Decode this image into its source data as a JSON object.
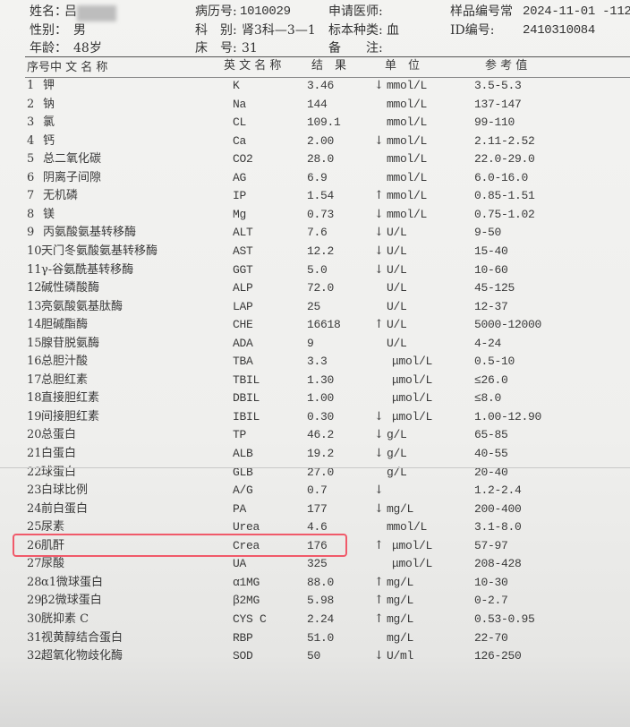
{
  "patient": {
    "name_label": "姓名：",
    "name": "吕",
    "sex_label": "性别：",
    "sex": "男",
    "age_label": "年龄：",
    "age": "48岁",
    "record_label": "病历号:",
    "record_no": "1010029",
    "dept_label": "科　别:",
    "dept": "肾3科—3—1",
    "bed_label": "床　号:",
    "bed": "31",
    "doctor_label": "申请医师:",
    "doctor": "",
    "specimen_label": "标本种类:",
    "specimen": "血",
    "note_label": "备　　注:",
    "note": "",
    "sample_label": "样品编号常",
    "sample_no": "2024-11-01 -112",
    "id_label": "ID编号:",
    "id_no": "2410310084"
  },
  "columns": {
    "seq_name": "序号中 文 名 称",
    "english": "英 文 名 称",
    "result": "结　果",
    "unit": "单　位",
    "reference": "参 考 值"
  },
  "rows": [
    {
      "no": "1",
      "cn": "钾",
      "en": "K",
      "result": "3.46",
      "flag": "↓",
      "unit": "mmol/L",
      "ref": "3.5-5.3"
    },
    {
      "no": "2",
      "cn": "钠",
      "en": "Na",
      "result": "144",
      "flag": "",
      "unit": "mmol/L",
      "ref": "137-147"
    },
    {
      "no": "3",
      "cn": "氯",
      "en": "CL",
      "result": "109.1",
      "flag": "",
      "unit": "mmol/L",
      "ref": "99-110"
    },
    {
      "no": "4",
      "cn": "钙",
      "en": "Ca",
      "result": "2.00",
      "flag": "↓",
      "unit": "mmol/L",
      "ref": "2.11-2.52"
    },
    {
      "no": "5",
      "cn": "总二氧化碳",
      "en": "CO2",
      "result": "28.0",
      "flag": "",
      "unit": "mmol/L",
      "ref": "22.0-29.0"
    },
    {
      "no": "6",
      "cn": "阴离子间隙",
      "en": "AG",
      "result": "6.9",
      "flag": "",
      "unit": "mmol/L",
      "ref": "6.0-16.0"
    },
    {
      "no": "7",
      "cn": "无机磷",
      "en": "IP",
      "result": "1.54",
      "flag": "↑",
      "unit": "mmol/L",
      "ref": "0.85-1.51"
    },
    {
      "no": "8",
      "cn": "镁",
      "en": "Mg",
      "result": "0.73",
      "flag": "↓",
      "unit": "mmol/L",
      "ref": "0.75-1.02"
    },
    {
      "no": "9",
      "cn": "丙氨酸氨基转移酶",
      "en": "ALT",
      "result": "7.6",
      "flag": "↓",
      "unit": "U/L",
      "ref": "9-50"
    },
    {
      "no": "10",
      "cn": "天门冬氨酸氨基转移酶",
      "en": "AST",
      "result": "12.2",
      "flag": "↓",
      "unit": "U/L",
      "ref": "15-40"
    },
    {
      "no": "11",
      "cn": "γ-谷氨酰基转移酶",
      "en": "GGT",
      "result": "5.0",
      "flag": "↓",
      "unit": "U/L",
      "ref": "10-60"
    },
    {
      "no": "12",
      "cn": "碱性磷酸酶",
      "en": "ALP",
      "result": "72.0",
      "flag": "",
      "unit": "U/L",
      "ref": "45-125"
    },
    {
      "no": "13",
      "cn": "亮氨酸氨基肽酶",
      "en": "LAP",
      "result": "25",
      "flag": "",
      "unit": "U/L",
      "ref": "12-37"
    },
    {
      "no": "14",
      "cn": "胆碱酯酶",
      "en": "CHE",
      "result": "16618",
      "flag": "↑",
      "unit": "U/L",
      "ref": "5000-12000"
    },
    {
      "no": "15",
      "cn": "腺苷脱氨酶",
      "en": "ADA",
      "result": "9",
      "flag": "",
      "unit": "U/L",
      "ref": "4-24"
    },
    {
      "no": "16",
      "cn": "总胆汁酸",
      "en": "TBA",
      "result": "3.3",
      "flag": "",
      "unit": "μmol/L",
      "ref": "0.5-10"
    },
    {
      "no": "17",
      "cn": "总胆红素",
      "en": "TBIL",
      "result": "1.30",
      "flag": "",
      "unit": "μmol/L",
      "ref": "≤26.0"
    },
    {
      "no": "18",
      "cn": "直接胆红素",
      "en": "DBIL",
      "result": "1.00",
      "flag": "",
      "unit": "μmol/L",
      "ref": "≤8.0"
    },
    {
      "no": "19",
      "cn": "间接胆红素",
      "en": "IBIL",
      "result": "0.30",
      "flag": "↓",
      "unit": "μmol/L",
      "ref": "1.00-12.90"
    },
    {
      "no": "20",
      "cn": "总蛋白",
      "en": "TP",
      "result": "46.2",
      "flag": "↓",
      "unit": "g/L",
      "ref": "65-85"
    },
    {
      "no": "21",
      "cn": "白蛋白",
      "en": "ALB",
      "result": "19.2",
      "flag": "↓",
      "unit": "g/L",
      "ref": "40-55"
    },
    {
      "no": "22",
      "cn": "球蛋白",
      "en": "GLB",
      "result": "27.0",
      "flag": "",
      "unit": "g/L",
      "ref": "20-40"
    },
    {
      "no": "23",
      "cn": "白球比例",
      "en": "A/G",
      "result": "0.7",
      "flag": "↓",
      "unit": "",
      "ref": "1.2-2.4"
    },
    {
      "no": "24",
      "cn": "前白蛋白",
      "en": "PA",
      "result": "177",
      "flag": "↓",
      "unit": "mg/L",
      "ref": "200-400"
    },
    {
      "no": "25",
      "cn": "尿素",
      "en": "Urea",
      "result": "4.6",
      "flag": "",
      "unit": "mmol/L",
      "ref": "3.1-8.0"
    },
    {
      "no": "26",
      "cn": "肌酐",
      "en": "Crea",
      "result": "176",
      "flag": "↑",
      "unit": "μmol/L",
      "ref": "57-97"
    },
    {
      "no": "27",
      "cn": "尿酸",
      "en": "UA",
      "result": "325",
      "flag": "",
      "unit": "μmol/L",
      "ref": "208-428"
    },
    {
      "no": "28",
      "cn": "α1微球蛋白",
      "en": "α1MG",
      "result": "88.0",
      "flag": "↑",
      "unit": "mg/L",
      "ref": "10-30"
    },
    {
      "no": "29",
      "cn": "β2微球蛋白",
      "en": "β2MG",
      "result": "5.98",
      "flag": "↑",
      "unit": "mg/L",
      "ref": "0-2.7"
    },
    {
      "no": "30",
      "cn": "胱抑素 C",
      "en": "CYS C",
      "result": "2.24",
      "flag": "↑",
      "unit": "mg/L",
      "ref": "0.53-0.95"
    },
    {
      "no": "31",
      "cn": "视黄醇结合蛋白",
      "en": "RBP",
      "result": "51.0",
      "flag": "",
      "unit": "mg/L",
      "ref": "22-70"
    },
    {
      "no": "32",
      "cn": "超氧化物歧化酶",
      "en": "SOD",
      "result": "50",
      "flag": "↓",
      "unit": "U/ml",
      "ref": "126-250"
    }
  ],
  "highlight": {
    "row_no": "26",
    "color": "#f05a6a"
  }
}
